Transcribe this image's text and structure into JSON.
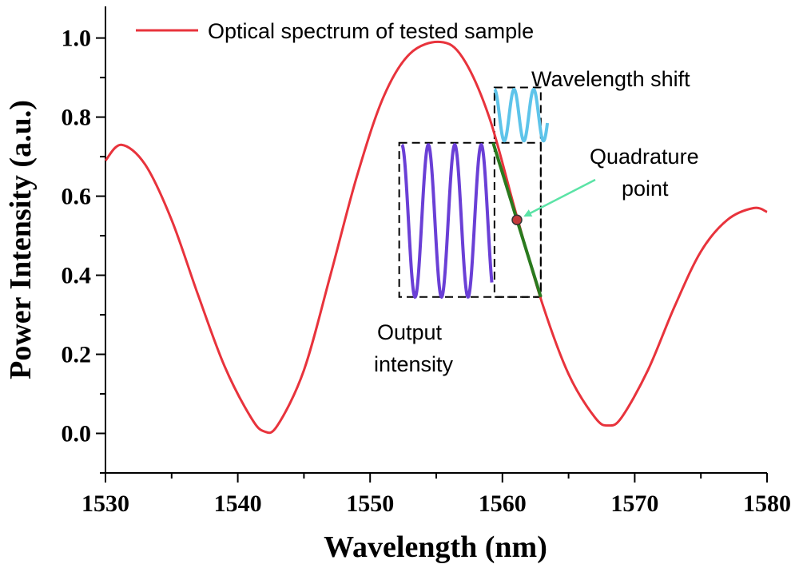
{
  "chart_data": {
    "type": "line",
    "xlabel": "Wavelength (nm)",
    "ylabel": "Power Intensity (a.u.)",
    "xlim": [
      1530,
      1580
    ],
    "ylim": [
      -0.1,
      1.08
    ],
    "xticks": [
      1530,
      1540,
      1550,
      1560,
      1570,
      1580
    ],
    "yticks": [
      0.0,
      0.2,
      0.4,
      0.6,
      0.8,
      1.0
    ],
    "xtick_labels": [
      "1530",
      "1540",
      "1550",
      "1560",
      "1570",
      "1580"
    ],
    "ytick_labels": [
      "0.0",
      "0.2",
      "0.4",
      "0.6",
      "0.8",
      "1.0"
    ],
    "grid": false,
    "legend_position": "top-left",
    "series": [
      {
        "name": "Optical spectrum of tested sample",
        "color": "#e8333c",
        "x": [
          1530,
          1531.2,
          1533,
          1535,
          1537,
          1539,
          1541,
          1542,
          1543,
          1545,
          1547,
          1549,
          1551,
          1553,
          1555.3,
          1557,
          1559,
          1561,
          1563,
          1565,
          1567,
          1568,
          1569,
          1571,
          1573,
          1575,
          1577,
          1579,
          1580
        ],
        "y": [
          0.69,
          0.73,
          0.68,
          0.54,
          0.35,
          0.17,
          0.04,
          0.005,
          0.02,
          0.16,
          0.4,
          0.65,
          0.85,
          0.96,
          0.99,
          0.95,
          0.8,
          0.56,
          0.33,
          0.15,
          0.04,
          0.02,
          0.04,
          0.16,
          0.32,
          0.46,
          0.54,
          0.57,
          0.56
        ]
      }
    ],
    "linear_segment": {
      "color": "#2a7a1e",
      "x": [
        1559.3,
        1562.9
      ],
      "y": [
        0.735,
        0.345
      ]
    },
    "quadrature_point": {
      "x": 1561.1,
      "y": 0.54,
      "color": "#c33a3a"
    },
    "output_wave": {
      "color": "#6a3fd6",
      "x_start": 1552.4,
      "x_end": 1559.2,
      "y_min": 0.345,
      "y_max": 0.73,
      "cycles": 3.4
    },
    "shift_wave": {
      "color": "#5ec4ea",
      "x_start": 1559.4,
      "x_end": 1563.4,
      "y_min": 0.74,
      "y_max": 0.87,
      "cycles": 2.7
    },
    "output_box": {
      "x": [
        1552.2,
        1562.9
      ],
      "y": [
        0.345,
        0.735
      ]
    },
    "shift_box": {
      "x": [
        1559.4,
        1562.9
      ],
      "y": [
        0.345,
        0.875
      ]
    },
    "annotations": [
      {
        "text": "Wavelength shift"
      },
      {
        "text": "Quadrature"
      },
      {
        "text": "point"
      },
      {
        "text": "Output"
      },
      {
        "text": "intensity"
      }
    ],
    "arrow_color": "#5be3a6"
  }
}
